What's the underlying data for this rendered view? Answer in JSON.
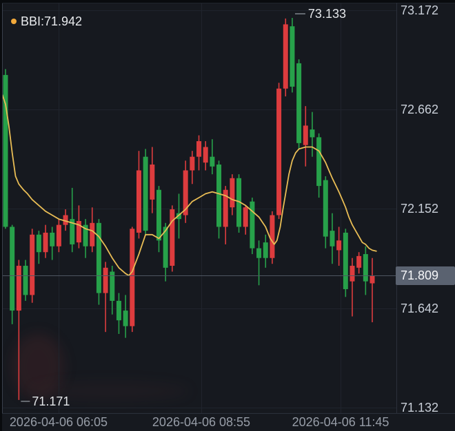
{
  "indicator": {
    "name": "BBI",
    "value": "71.942",
    "display": "BBI:71.942"
  },
  "markers": {
    "high": {
      "text": "73.133"
    },
    "low": {
      "text": "71.171"
    }
  },
  "price_tag": {
    "text": "71.809"
  },
  "colors": {
    "background": "#16191f",
    "up": "#dd3c3e",
    "down": "#27a14a",
    "bbi_line": "#e9bd55",
    "bbi_dot": "#f2a93b",
    "grid": "#20242d",
    "axis_text": "#c9cfd8",
    "time_text": "#979da7",
    "marker_text": "#e4e7ea",
    "marker_line": "#9aa0a8",
    "last_price_line": "#4f5662",
    "tag_bg": "#5a6270",
    "tag_text": "#f5f6f8"
  },
  "chart_data": {
    "type": "candlestick",
    "convention": "red-up-green-down",
    "last_price": 71.809,
    "high": 73.133,
    "low": 71.171,
    "high_marker": {
      "price": 73.133,
      "i": 43
    },
    "low_marker": {
      "price": 71.171,
      "i": 2
    },
    "y_axis": {
      "labels": [
        {
          "text": "73.172",
          "price": 73.172
        },
        {
          "text": "72.662",
          "price": 72.662
        },
        {
          "text": "72.152",
          "price": 72.152
        },
        {
          "text": "71.642",
          "price": 71.642
        },
        {
          "text": "71.132",
          "price": 71.132
        }
      ],
      "range": [
        71.132,
        73.172
      ]
    },
    "x_axis": {
      "labels": [
        {
          "text": "2026-04-06 06:05",
          "i": 7.96
        },
        {
          "text": "2026-04-06 08:55",
          "i": 29.36
        },
        {
          "text": "2026-04-06 11:45",
          "i": 50.25
        }
      ]
    },
    "candles": [
      [
        72.84,
        72.87,
        72.05,
        72.06
      ],
      [
        72.06,
        72.07,
        71.56,
        71.63
      ],
      [
        71.63,
        71.89,
        71.171,
        71.86
      ],
      [
        71.86,
        71.89,
        71.68,
        71.71
      ],
      [
        71.71,
        72.05,
        71.67,
        72.02
      ],
      [
        72.02,
        72.04,
        71.87,
        71.93
      ],
      [
        71.93,
        72.07,
        71.9,
        72.03
      ],
      [
        72.03,
        72.06,
        71.89,
        71.96
      ],
      [
        71.96,
        72.1,
        71.93,
        72.07
      ],
      [
        72.07,
        72.15,
        72.04,
        72.12
      ],
      [
        72.1,
        72.26,
        71.93,
        71.97
      ],
      [
        71.98,
        72.17,
        71.95,
        72.09
      ],
      [
        72.07,
        72.1,
        71.9,
        71.96
      ],
      [
        71.96,
        72.16,
        71.93,
        72.08
      ],
      [
        72.08,
        72.1,
        71.66,
        71.72
      ],
      [
        71.72,
        71.88,
        71.52,
        71.85
      ],
      [
        71.83,
        71.86,
        71.61,
        71.68
      ],
      [
        71.68,
        71.72,
        71.51,
        71.58
      ],
      [
        71.63,
        71.71,
        71.49,
        71.55
      ],
      [
        71.55,
        72.06,
        71.52,
        72.05
      ],
      [
        72.03,
        72.45,
        72.0,
        72.35
      ],
      [
        72.42,
        72.46,
        72.02,
        72.04
      ],
      [
        72.2,
        72.47,
        72.13,
        72.38
      ],
      [
        72.25,
        72.27,
        71.93,
        71.99
      ],
      [
        72.06,
        72.08,
        71.78,
        71.85
      ],
      [
        71.86,
        72.17,
        71.83,
        72.15
      ],
      [
        72.13,
        72.23,
        72.0,
        72.1
      ],
      [
        72.12,
        72.4,
        72.08,
        72.35
      ],
      [
        72.35,
        72.45,
        72.28,
        72.42
      ],
      [
        72.42,
        72.53,
        72.35,
        72.5
      ],
      [
        72.39,
        72.5,
        72.35,
        72.47
      ],
      [
        72.42,
        72.51,
        72.33,
        72.37
      ],
      [
        72.38,
        72.4,
        72.0,
        72.06
      ],
      [
        72.06,
        72.27,
        71.97,
        72.25
      ],
      [
        72.16,
        72.33,
        72.12,
        72.31
      ],
      [
        72.31,
        72.33,
        72.03,
        72.06
      ],
      [
        72.06,
        72.17,
        72.02,
        72.16
      ],
      [
        72.19,
        72.21,
        71.92,
        71.95
      ],
      [
        71.95,
        71.99,
        71.76,
        71.9
      ],
      [
        71.98,
        72.02,
        71.85,
        71.9
      ],
      [
        71.9,
        72.14,
        71.87,
        72.12
      ],
      [
        72.12,
        72.8,
        72.1,
        72.77
      ],
      [
        72.77,
        73.13,
        72.73,
        73.1
      ],
      [
        73.09,
        73.133,
        72.75,
        72.78
      ],
      [
        72.9,
        72.92,
        72.46,
        72.49
      ],
      [
        72.48,
        72.68,
        72.37,
        72.58
      ],
      [
        72.56,
        72.65,
        72.42,
        72.52
      ],
      [
        72.52,
        72.54,
        72.21,
        72.27
      ],
      [
        72.3,
        72.32,
        71.95,
        72.01
      ],
      [
        72.04,
        72.13,
        71.87,
        71.96
      ],
      [
        71.94,
        72.06,
        71.86,
        71.99
      ],
      [
        72.03,
        72.05,
        71.7,
        71.74
      ],
      [
        71.78,
        71.9,
        71.6,
        71.86
      ],
      [
        71.85,
        71.93,
        71.82,
        71.91
      ],
      [
        71.92,
        71.96,
        71.71,
        71.78
      ],
      [
        71.77,
        71.9,
        71.57,
        71.809
      ]
    ],
    "bbi": [
      [
        -0.5,
        72.74
      ],
      [
        0,
        72.69
      ],
      [
        0.5,
        72.58
      ],
      [
        1,
        72.44
      ],
      [
        1.5,
        72.32
      ],
      [
        2,
        72.28
      ],
      [
        2.7,
        72.25
      ],
      [
        3.3,
        72.23
      ],
      [
        4,
        72.2
      ],
      [
        5,
        72.17
      ],
      [
        6,
        72.14
      ],
      [
        7,
        72.12
      ],
      [
        8,
        72.1
      ],
      [
        9,
        72.09
      ],
      [
        10,
        72.08
      ],
      [
        11,
        72.07
      ],
      [
        12,
        72.05
      ],
      [
        13,
        72.04
      ],
      [
        14,
        72.01
      ],
      [
        15,
        71.96
      ],
      [
        16,
        71.9
      ],
      [
        17,
        71.85
      ],
      [
        18,
        71.82
      ],
      [
        18.5,
        71.81
      ],
      [
        19,
        71.83
      ],
      [
        20,
        71.92
      ],
      [
        21,
        72.02
      ],
      [
        22,
        72.02
      ],
      [
        23,
        72.0
      ],
      [
        24,
        72.04
      ],
      [
        25,
        72.09
      ],
      [
        26,
        72.12
      ],
      [
        27,
        72.15
      ],
      [
        28,
        72.19
      ],
      [
        29,
        72.21
      ],
      [
        30,
        72.23
      ],
      [
        31,
        72.24
      ],
      [
        32,
        72.23
      ],
      [
        33,
        72.22
      ],
      [
        34,
        72.2
      ],
      [
        35,
        72.19
      ],
      [
        36,
        72.17
      ],
      [
        37,
        72.14
      ],
      [
        38,
        72.11
      ],
      [
        39,
        72.06
      ],
      [
        39.7,
        72.0
      ],
      [
        40.3,
        71.97
      ],
      [
        40.7,
        71.99
      ],
      [
        41.2,
        72.06
      ],
      [
        41.6,
        72.15
      ],
      [
        42,
        72.23
      ],
      [
        42.5,
        72.33
      ],
      [
        43,
        72.4
      ],
      [
        43.5,
        72.44
      ],
      [
        44,
        72.46
      ],
      [
        45,
        72.47
      ],
      [
        46,
        72.47
      ],
      [
        47,
        72.45
      ],
      [
        47.5,
        72.42
      ],
      [
        48,
        72.39
      ],
      [
        48.5,
        72.35
      ],
      [
        49,
        72.31
      ],
      [
        50,
        72.24
      ],
      [
        50.5,
        72.2
      ],
      [
        51,
        72.16
      ],
      [
        51.5,
        72.11
      ],
      [
        52,
        72.07
      ],
      [
        52.5,
        72.04
      ],
      [
        53,
        72.01
      ],
      [
        53.5,
        71.98
      ],
      [
        54,
        71.97
      ],
      [
        54.5,
        71.95
      ],
      [
        55,
        71.94
      ],
      [
        55.6,
        71.935
      ]
    ]
  }
}
